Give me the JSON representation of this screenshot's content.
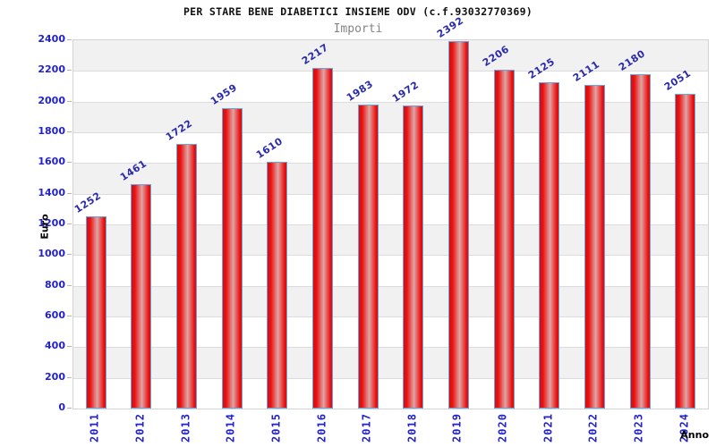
{
  "chart_data": {
    "type": "bar",
    "title": "PER STARE BENE DIABETICI INSIEME ODV (c.f.93032770369)",
    "subtitle": "Importi",
    "xlabel": "Anno",
    "ylabel": "Euro",
    "categories": [
      "2011",
      "2012",
      "2013",
      "2014",
      "2015",
      "2016",
      "2017",
      "2018",
      "2019",
      "2020",
      "2021",
      "2022",
      "2023",
      "2024"
    ],
    "values": [
      1252,
      1461,
      1722,
      1959,
      1610,
      2217,
      1983,
      1972,
      2392,
      2206,
      2125,
      2111,
      2180,
      2051
    ],
    "ylim": [
      0,
      2400
    ],
    "ytick_step": 200,
    "yticks": [
      0,
      200,
      400,
      600,
      800,
      1000,
      1200,
      1400,
      1600,
      1800,
      2000,
      2200,
      2400
    ],
    "grid": "alternating-horizontal-bands",
    "legend": "none",
    "colors": {
      "title_text": "#111111",
      "subtitle_text": "#848484",
      "axis_title_text": "#000000",
      "tick_text": "#2222cc",
      "value_label_text": "#2b2baa",
      "bar_red": "#ee1111",
      "bar_red_dark": "#cf1010",
      "bar_highlight": "#dda6a6",
      "bar_border": "#69a3e0",
      "band_gray": "#f1f1f1",
      "band_white": "#ffffff",
      "gridline": "#dcdcdc",
      "tick_mark": "#b4b4b4"
    }
  }
}
